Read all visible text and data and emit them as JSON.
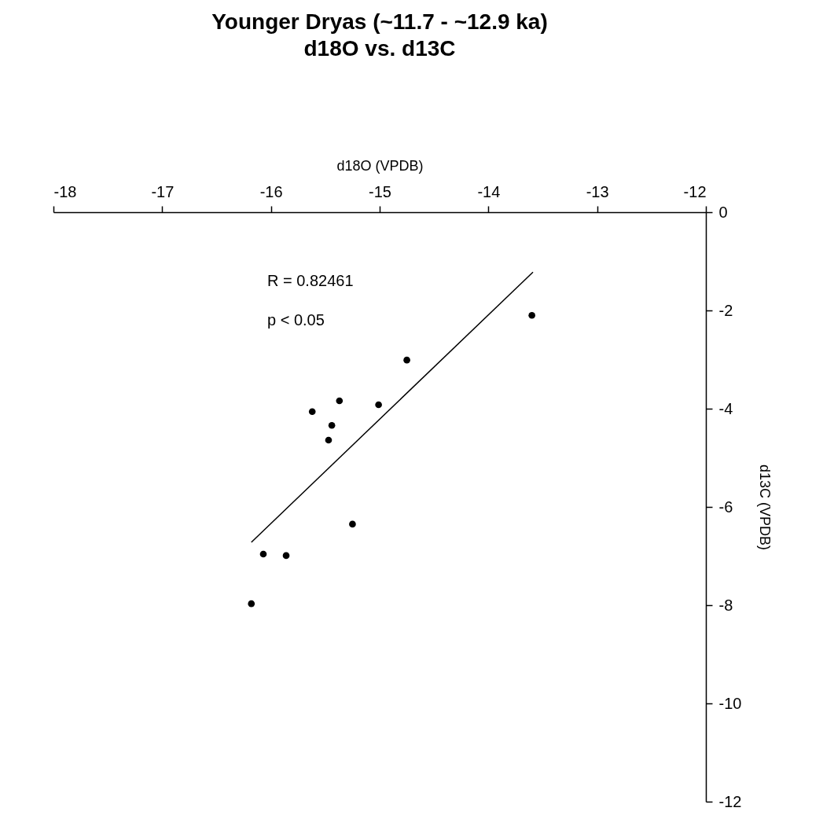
{
  "chart_data": {
    "type": "scatter",
    "title": "Younger Dryas (~11.7 - ~12.9 ka)",
    "subtitle": "d18O vs. d13C",
    "xlabel": "d18O (VPDB)",
    "ylabel": "d13C (VPDB)",
    "xlim": [
      -18,
      -12
    ],
    "ylim": [
      -12,
      0
    ],
    "xticks": [
      -18,
      -17,
      -16,
      -15,
      -14,
      -13,
      -12
    ],
    "yticks": [
      0,
      -2,
      -4,
      -6,
      -8,
      -10,
      -12
    ],
    "grid": false,
    "annotations": [
      "R = 0.82461",
      "p < 0.05"
    ],
    "series": [
      {
        "marker": "circle",
        "color": "#000000",
        "x": [
          -16.18,
          -16.07,
          -15.86,
          -15.62,
          -15.47,
          -15.44,
          -15.37,
          -15.25,
          -15.01,
          -14.75,
          -13.6
        ],
        "values": [
          -7.97,
          -6.96,
          -6.99,
          -4.06,
          -4.64,
          -4.34,
          -3.84,
          -6.35,
          -3.92,
          -3.01,
          -2.1
        ]
      },
      {
        "type": "line",
        "color": "#000000",
        "x": [
          -16.18,
          -13.59
        ],
        "values": [
          -6.72,
          -1.22
        ]
      }
    ]
  }
}
